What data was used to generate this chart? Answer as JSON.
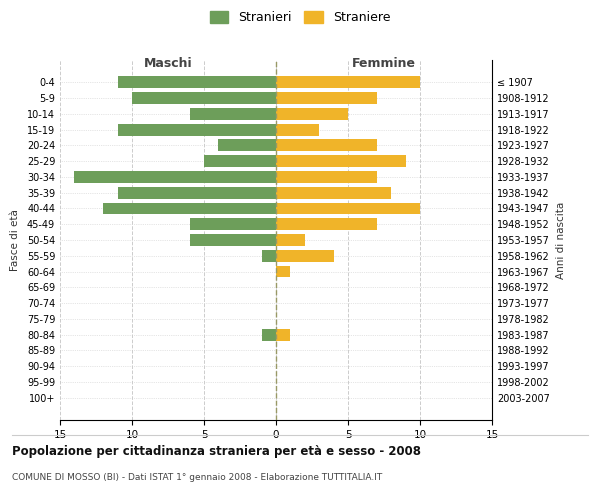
{
  "age_groups": [
    "0-4",
    "5-9",
    "10-14",
    "15-19",
    "20-24",
    "25-29",
    "30-34",
    "35-39",
    "40-44",
    "45-49",
    "50-54",
    "55-59",
    "60-64",
    "65-69",
    "70-74",
    "75-79",
    "80-84",
    "85-89",
    "90-94",
    "95-99",
    "100+"
  ],
  "birth_years": [
    "2003-2007",
    "1998-2002",
    "1993-1997",
    "1988-1992",
    "1983-1987",
    "1978-1982",
    "1973-1977",
    "1968-1972",
    "1963-1967",
    "1958-1962",
    "1953-1957",
    "1948-1952",
    "1943-1947",
    "1938-1942",
    "1933-1937",
    "1928-1932",
    "1923-1927",
    "1918-1922",
    "1913-1917",
    "1908-1912",
    "≤ 1907"
  ],
  "males": [
    11,
    10,
    6,
    11,
    4,
    5,
    14,
    11,
    12,
    6,
    6,
    1,
    0,
    0,
    0,
    0,
    1,
    0,
    0,
    0,
    0
  ],
  "females": [
    10,
    7,
    5,
    3,
    7,
    9,
    7,
    8,
    10,
    7,
    2,
    4,
    1,
    0,
    0,
    0,
    1,
    0,
    0,
    0,
    0
  ],
  "male_color": "#6d9e5a",
  "female_color": "#f0b429",
  "title": "Popolazione per cittadinanza straniera per età e sesso - 2008",
  "subtitle": "COMUNE DI MOSSO (BI) - Dati ISTAT 1° gennaio 2008 - Elaborazione TUTTITALIA.IT",
  "xlabel_left": "Maschi",
  "xlabel_right": "Femmine",
  "ylabel_left": "Fasce di età",
  "ylabel_right": "Anni di nascita",
  "legend_male": "Stranieri",
  "legend_female": "Straniere",
  "xlim": 15,
  "background_color": "#ffffff",
  "grid_color": "#cccccc"
}
